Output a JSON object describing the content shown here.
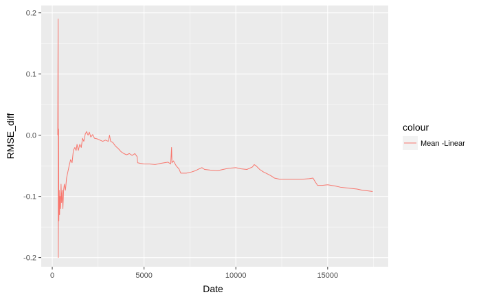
{
  "chart_data": {
    "type": "line",
    "title": "",
    "xlabel": "Date",
    "ylabel": "RMSE_diff",
    "xlim": [
      -600,
      18300
    ],
    "ylim": [
      -0.215,
      0.212
    ],
    "xticks": [
      0,
      5000,
      10000,
      15000
    ],
    "xtick_labels": [
      "0",
      "5000",
      "10000",
      "15000"
    ],
    "yticks": [
      -0.2,
      -0.1,
      0.0,
      0.1,
      0.2
    ],
    "ytick_labels": [
      "-0.2",
      "-0.1",
      "0.0",
      "0.1",
      "0.2"
    ],
    "grid": true,
    "panel_background": "#ebebeb",
    "legend": {
      "title": "colour",
      "position": "right"
    },
    "series": [
      {
        "name": "Mean -Linear",
        "color": "#f8766d",
        "points": [
          [
            300,
            0.0
          ],
          [
            320,
            0.19
          ],
          [
            330,
            -0.2
          ],
          [
            345,
            0.01
          ],
          [
            360,
            -0.14
          ],
          [
            380,
            -0.09
          ],
          [
            400,
            -0.13
          ],
          [
            420,
            -0.1
          ],
          [
            450,
            -0.12
          ],
          [
            480,
            -0.08
          ],
          [
            510,
            -0.11
          ],
          [
            540,
            -0.09
          ],
          [
            580,
            -0.12
          ],
          [
            620,
            -0.09
          ],
          [
            660,
            -0.08
          ],
          [
            720,
            -0.09
          ],
          [
            780,
            -0.07
          ],
          [
            850,
            -0.06
          ],
          [
            920,
            -0.05
          ],
          [
            1000,
            -0.04
          ],
          [
            1080,
            -0.045
          ],
          [
            1150,
            -0.025
          ],
          [
            1230,
            -0.02
          ],
          [
            1300,
            -0.025
          ],
          [
            1350,
            -0.015
          ],
          [
            1420,
            -0.025
          ],
          [
            1500,
            -0.015
          ],
          [
            1580,
            -0.02
          ],
          [
            1650,
            -0.005
          ],
          [
            1720,
            -0.01
          ],
          [
            1800,
            0.002
          ],
          [
            1870,
            0.006
          ],
          [
            1950,
            0.0
          ],
          [
            2020,
            0.005
          ],
          [
            2100,
            -0.003
          ],
          [
            2200,
            0.001
          ],
          [
            2300,
            -0.005
          ],
          [
            2450,
            -0.006
          ],
          [
            2600,
            -0.008
          ],
          [
            2750,
            -0.01
          ],
          [
            2900,
            -0.008
          ],
          [
            3050,
            -0.01
          ],
          [
            3120,
            0.0
          ],
          [
            3180,
            -0.01
          ],
          [
            3300,
            -0.012
          ],
          [
            3450,
            -0.018
          ],
          [
            3600,
            -0.022
          ],
          [
            3750,
            -0.027
          ],
          [
            3900,
            -0.03
          ],
          [
            4050,
            -0.032
          ],
          [
            4200,
            -0.03
          ],
          [
            4350,
            -0.033
          ],
          [
            4500,
            -0.03
          ],
          [
            4620,
            -0.035
          ],
          [
            4650,
            -0.045
          ],
          [
            4800,
            -0.046
          ],
          [
            5000,
            -0.047
          ],
          [
            5300,
            -0.047
          ],
          [
            5600,
            -0.048
          ],
          [
            5900,
            -0.046
          ],
          [
            6100,
            -0.045
          ],
          [
            6300,
            -0.044
          ],
          [
            6450,
            -0.047
          ],
          [
            6500,
            -0.02
          ],
          [
            6520,
            -0.045
          ],
          [
            6600,
            -0.042
          ],
          [
            6750,
            -0.05
          ],
          [
            6900,
            -0.055
          ],
          [
            7000,
            -0.062
          ],
          [
            7300,
            -0.062
          ],
          [
            7600,
            -0.06
          ],
          [
            7800,
            -0.058
          ],
          [
            8000,
            -0.055
          ],
          [
            8150,
            -0.053
          ],
          [
            8300,
            -0.056
          ],
          [
            8600,
            -0.057
          ],
          [
            9000,
            -0.058
          ],
          [
            9300,
            -0.056
          ],
          [
            9600,
            -0.054
          ],
          [
            10000,
            -0.053
          ],
          [
            10300,
            -0.055
          ],
          [
            10600,
            -0.056
          ],
          [
            10900,
            -0.052
          ],
          [
            11000,
            -0.048
          ],
          [
            11100,
            -0.05
          ],
          [
            11300,
            -0.056
          ],
          [
            11500,
            -0.06
          ],
          [
            11700,
            -0.063
          ],
          [
            11900,
            -0.066
          ],
          [
            12100,
            -0.07
          ],
          [
            12400,
            -0.072
          ],
          [
            12800,
            -0.072
          ],
          [
            13200,
            -0.072
          ],
          [
            13600,
            -0.072
          ],
          [
            14000,
            -0.071
          ],
          [
            14200,
            -0.07
          ],
          [
            14300,
            -0.075
          ],
          [
            14450,
            -0.082
          ],
          [
            14700,
            -0.082
          ],
          [
            15000,
            -0.081
          ],
          [
            15200,
            -0.082
          ],
          [
            15400,
            -0.083
          ],
          [
            15700,
            -0.085
          ],
          [
            16000,
            -0.086
          ],
          [
            16300,
            -0.087
          ],
          [
            16600,
            -0.088
          ],
          [
            16900,
            -0.09
          ],
          [
            17200,
            -0.091
          ],
          [
            17450,
            -0.092
          ]
        ]
      }
    ]
  }
}
